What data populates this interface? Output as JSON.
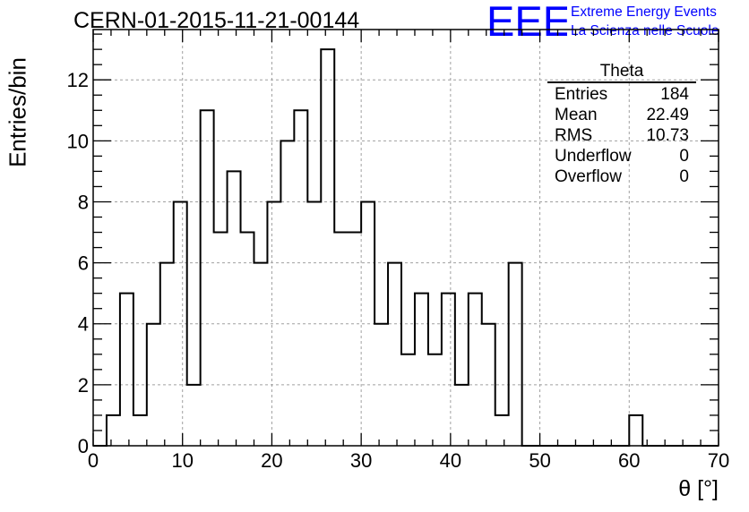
{
  "header": {
    "title": "CERN-01-2015-11-21-00144",
    "logo_text": "EEE",
    "logo_line1": "Extreme Energy Events",
    "logo_line2": "La Scienza nelle Scuole"
  },
  "colors": {
    "logo": "#0000ff",
    "histogram": "#000000",
    "grid": "#a0a0a0"
  },
  "stats_box": {
    "title": "Theta",
    "rows": [
      {
        "label": "Entries",
        "value": "184"
      },
      {
        "label": "Mean",
        "value": "22.49"
      },
      {
        "label": "RMS",
        "value": "10.73"
      },
      {
        "label": "Underflow",
        "value": "0"
      },
      {
        "label": "Overflow",
        "value": "0"
      }
    ]
  },
  "chart_data": {
    "type": "histogram",
    "title": "CERN-01-2015-11-21-00144",
    "xlabel": "θ [°]",
    "ylabel": "Entries/bin",
    "xlim": [
      0,
      70
    ],
    "ylim": [
      0,
      13.65
    ],
    "xticks": [
      0,
      10,
      20,
      30,
      40,
      50,
      60,
      70
    ],
    "yticks": [
      0,
      2,
      4,
      6,
      8,
      10,
      12
    ],
    "grid": true,
    "bin_edges": [
      0,
      1.5,
      3,
      4.5,
      6,
      7.5,
      9,
      10.5,
      12,
      13.5,
      15,
      16.5,
      18,
      19.5,
      21,
      22.5,
      24,
      25.5,
      27,
      28.5,
      30,
      31.5,
      33,
      34.5,
      36,
      37.5,
      39,
      40.5,
      42,
      43.5,
      45,
      46.5,
      48,
      49.5,
      51,
      52.5,
      54,
      55.5,
      57,
      58.5,
      60,
      61.5,
      63,
      64.5,
      66,
      67.5,
      69,
      70.5
    ],
    "counts": [
      0,
      1,
      5,
      1,
      4,
      6,
      8,
      2,
      11,
      7,
      9,
      7,
      6,
      8,
      10,
      11,
      8,
      13,
      7,
      7,
      8,
      4,
      6,
      3,
      5,
      3,
      5,
      2,
      5,
      4,
      1,
      6,
      0,
      0,
      0,
      0,
      0,
      0,
      0,
      0,
      1,
      0,
      0,
      0,
      0,
      0,
      0
    ]
  }
}
